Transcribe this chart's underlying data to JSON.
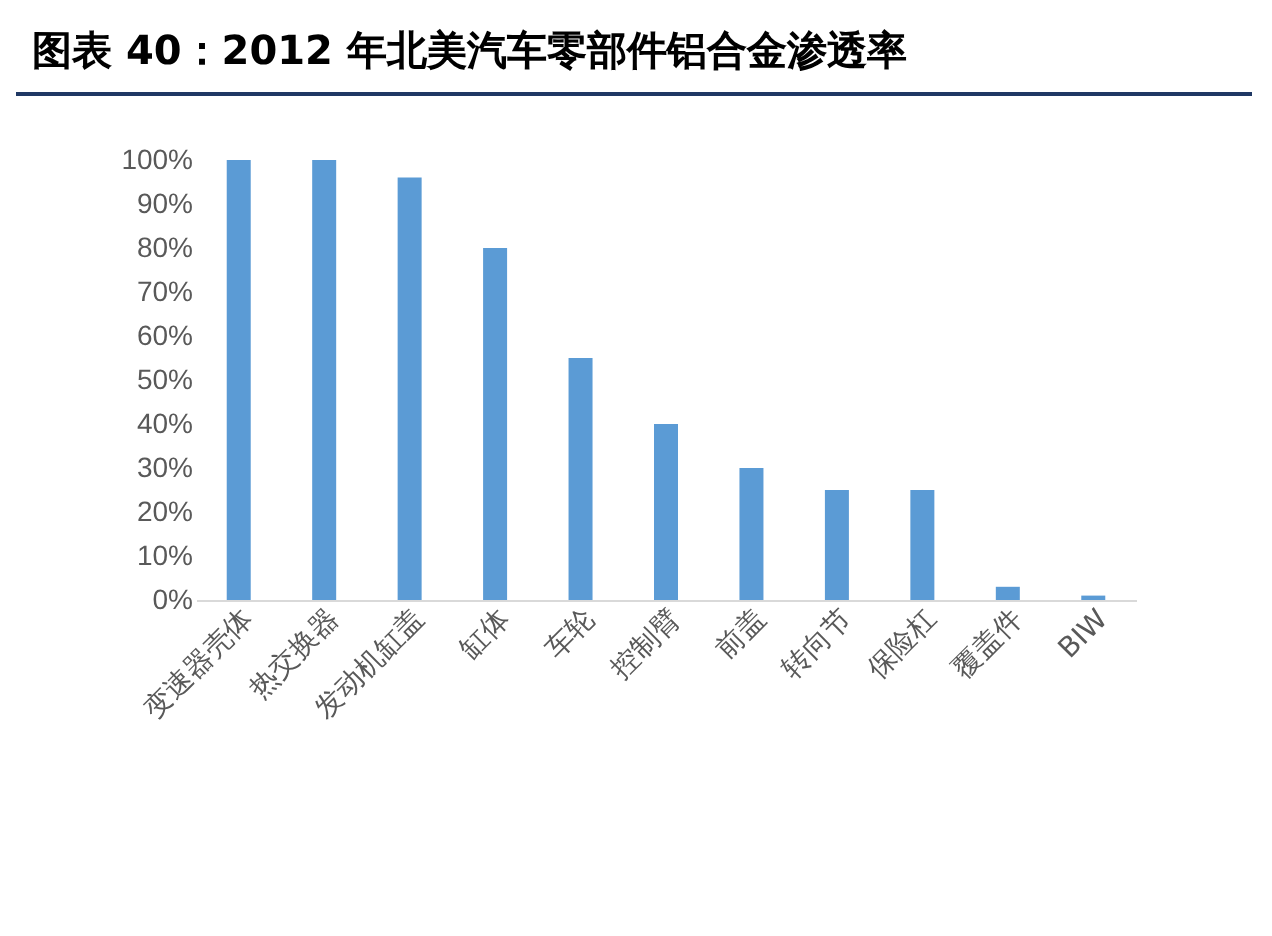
{
  "chart_data": {
    "type": "bar",
    "title": "图表 40：2012 年北美汽车零部件铝合金渗透率",
    "categories": [
      "变速器壳体",
      "热交换器",
      "发动机缸盖",
      "缸体",
      "车轮",
      "控制臂",
      "前盖",
      "转向节",
      "保险杠",
      "覆盖件",
      "BIW"
    ],
    "values": [
      100,
      100,
      96,
      80,
      55,
      40,
      30,
      25,
      25,
      3,
      1
    ],
    "color": "#5b9bd5",
    "ylim": [
      0,
      100
    ],
    "yticks": [
      {
        "value": 0,
        "label": "0%"
      },
      {
        "value": 10,
        "label": "10%"
      },
      {
        "value": 20,
        "label": "20%"
      },
      {
        "value": 30,
        "label": "30%"
      },
      {
        "value": 40,
        "label": "40%"
      },
      {
        "value": 50,
        "label": "50%"
      },
      {
        "value": 60,
        "label": "60%"
      },
      {
        "value": 70,
        "label": "70%"
      },
      {
        "value": 80,
        "label": "80%"
      },
      {
        "value": 90,
        "label": "90%"
      },
      {
        "value": 100,
        "label": "100%"
      }
    ],
    "grid": false
  }
}
